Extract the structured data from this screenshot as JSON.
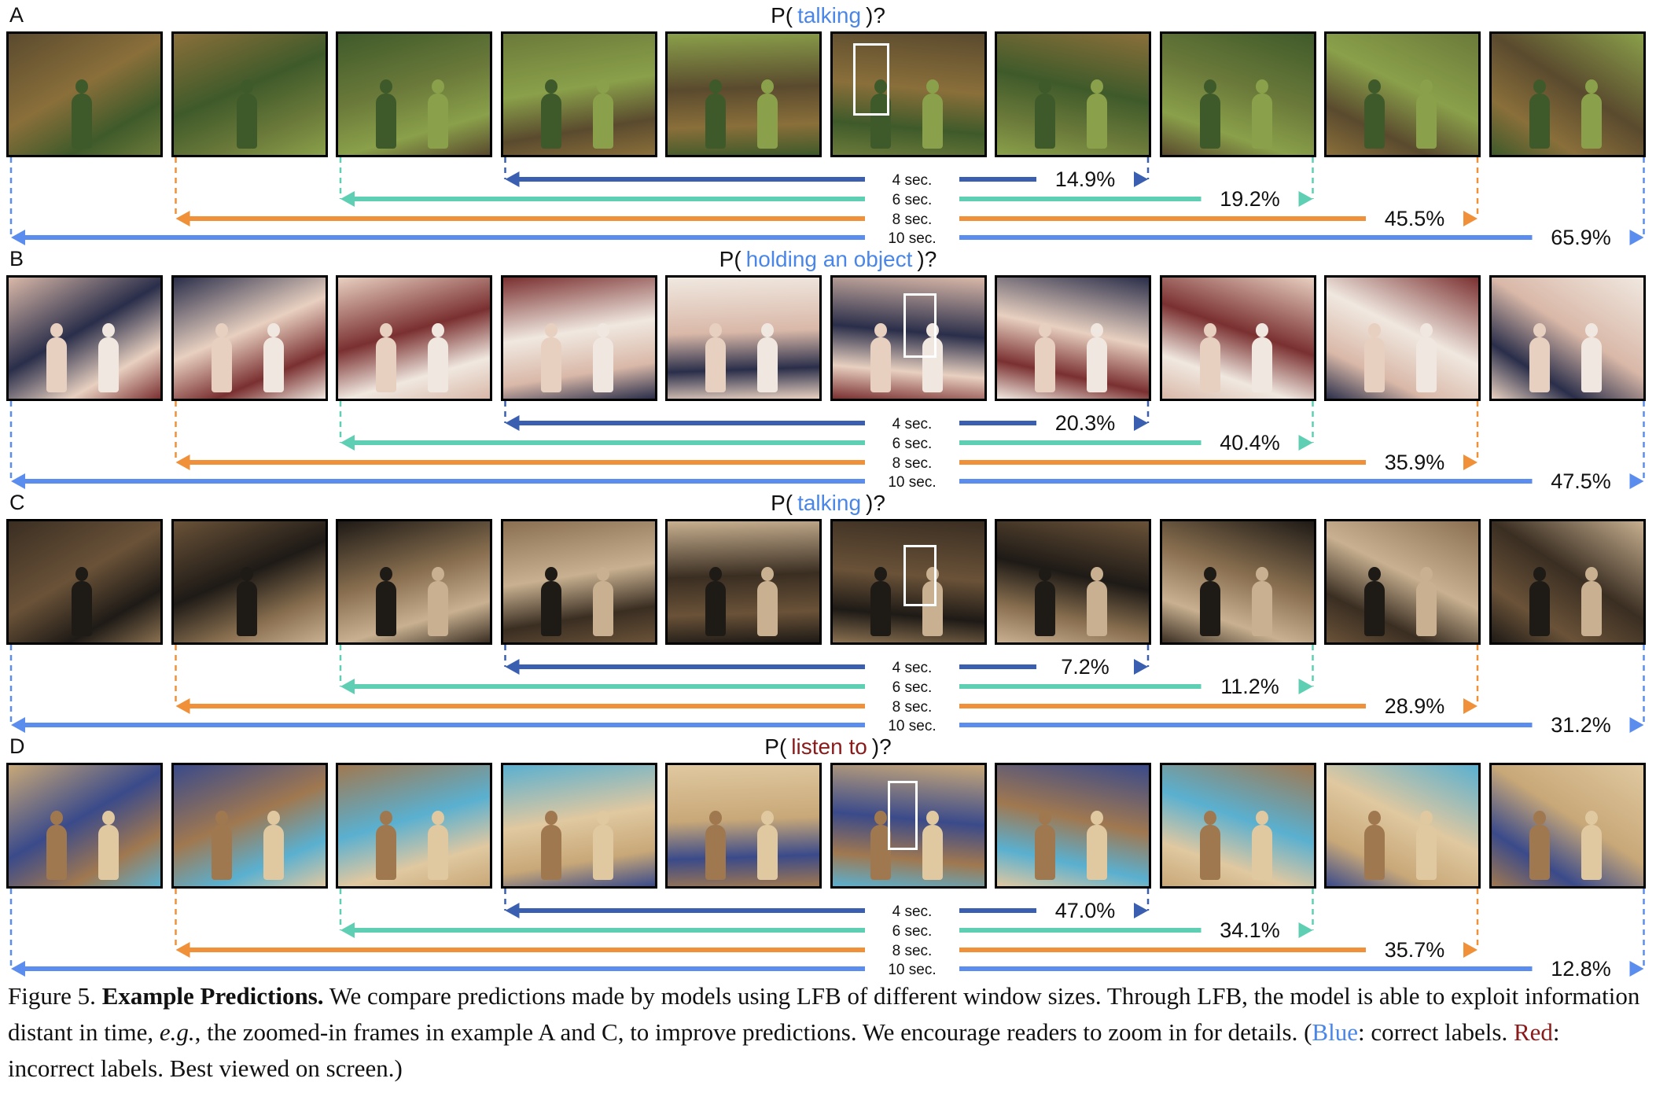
{
  "panels": [
    {
      "letter": "A",
      "question_prefix": "P(",
      "action": "talking",
      "question_suffix": ")?",
      "action_color": "#4a86e8",
      "scene_palette": [
        "#5a4a2e",
        "#8a6f3a",
        "#3f5a2a",
        "#6b7a3a",
        "#8aa04a"
      ],
      "bbox_frame": 5,
      "windows": [
        {
          "label": "4 sec.",
          "value": "14.9%",
          "color": "#3a5fb0"
        },
        {
          "label": "6 sec.",
          "value": "19.2%",
          "color": "#5fcfb3"
        },
        {
          "label": "8 sec.",
          "value": "45.5%",
          "color": "#f0913a"
        },
        {
          "label": "10 sec.",
          "value": "65.9%",
          "color": "#5b8def"
        }
      ]
    },
    {
      "letter": "B",
      "question_prefix": "P(",
      "action": "holding an object",
      "question_suffix": ")?",
      "action_color": "#4a86e8",
      "scene_palette": [
        "#d9b8a8",
        "#2a2e4a",
        "#e8d0c0",
        "#7a3030",
        "#f0e8e0"
      ],
      "bbox_frame": 5,
      "windows": [
        {
          "label": "4 sec.",
          "value": "20.3%",
          "color": "#3a5fb0"
        },
        {
          "label": "6 sec.",
          "value": "40.4%",
          "color": "#5fcfb3"
        },
        {
          "label": "8 sec.",
          "value": "35.9%",
          "color": "#f0913a"
        },
        {
          "label": "10 sec.",
          "value": "47.5%",
          "color": "#5b8def"
        }
      ]
    },
    {
      "letter": "C",
      "question_prefix": "P(",
      "action": "talking",
      "question_suffix": ")?",
      "action_color": "#4a86e8",
      "scene_palette": [
        "#3a2e22",
        "#6a5238",
        "#1e1a16",
        "#8a7050",
        "#c8b090"
      ],
      "bbox_frame": 5,
      "windows": [
        {
          "label": "4 sec.",
          "value": "7.2%",
          "color": "#3a5fb0"
        },
        {
          "label": "6 sec.",
          "value": "11.2%",
          "color": "#5fcfb3"
        },
        {
          "label": "8 sec.",
          "value": "28.9%",
          "color": "#f0913a"
        },
        {
          "label": "10 sec.",
          "value": "31.2%",
          "color": "#5b8def"
        }
      ]
    },
    {
      "letter": "D",
      "question_prefix": "P(",
      "action": "listen to",
      "question_suffix": ")?",
      "action_color": "#8b1a1a",
      "scene_palette": [
        "#c8a878",
        "#3a4a8a",
        "#a07850",
        "#5ab0d0",
        "#e0c8a0"
      ],
      "bbox_frame": 5,
      "windows": [
        {
          "label": "4 sec.",
          "value": "47.0%",
          "color": "#3a5fb0"
        },
        {
          "label": "6 sec.",
          "value": "34.1%",
          "color": "#5fcfb3"
        },
        {
          "label": "8 sec.",
          "value": "35.7%",
          "color": "#f0913a"
        },
        {
          "label": "10 sec.",
          "value": "12.8%",
          "color": "#5b8def"
        }
      ]
    }
  ],
  "caption": {
    "figure_label": "Figure 5.",
    "title": "Example Predictions.",
    "text_1": "We compare predictions made by models using LFB of different window sizes. Through LFB, the model is able to exploit information distant in time,",
    "eg": "e.g.",
    "text_2": ", the zoomed-in frames in example A and C, to improve predictions. We encourage readers to zoom in for details. (",
    "blue_word": "Blue",
    "text_3": ": correct labels.",
    "red_word": "Red",
    "text_4": ": incorrect labels. Best viewed on screen.)",
    "blue_color": "#4a86e8",
    "red_color": "#8b1a1a"
  }
}
